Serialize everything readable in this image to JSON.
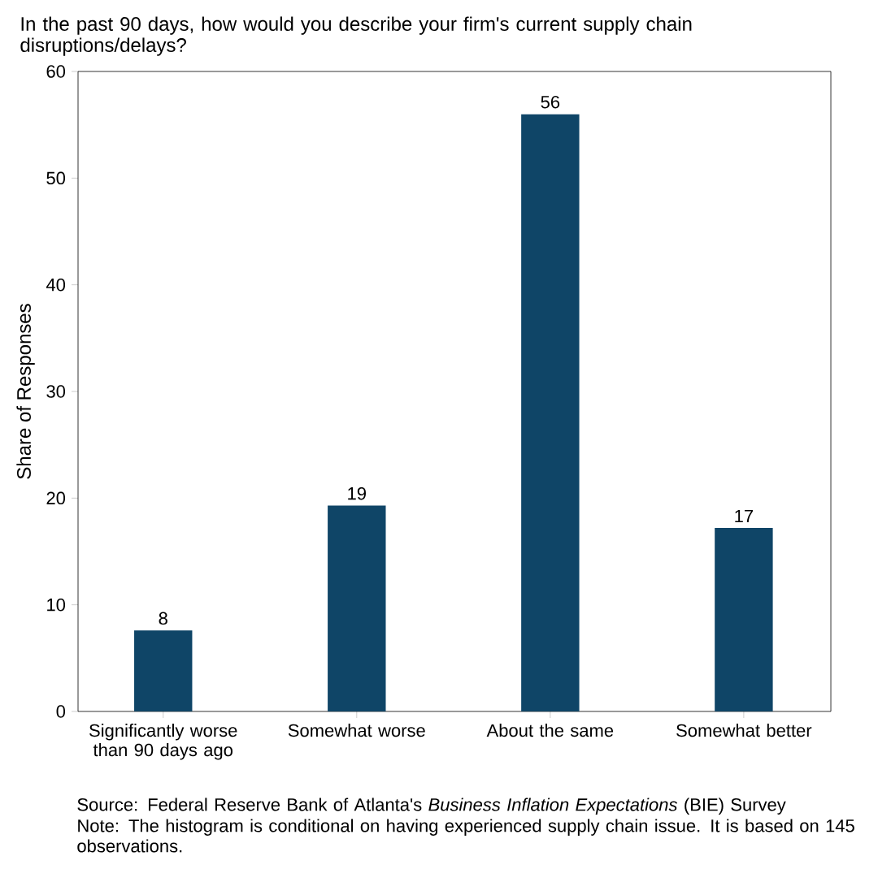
{
  "chart_data": {
    "type": "bar",
    "title": "In the past 90 days, how would you describe your firm's current supply chain disruptions/delays?",
    "ylabel": "Share of Responses",
    "categories": [
      "Significantly worse than 90 days ago",
      "Somewhat worse",
      "About the same",
      "Somewhat better"
    ],
    "values": [
      7.6,
      19.3,
      56,
      17.2
    ],
    "value_labels": [
      "8",
      "19",
      "56",
      "17"
    ],
    "color": "#0f4567",
    "ylim": [
      0,
      60
    ],
    "yticks": [
      0,
      10,
      20,
      30,
      40,
      50,
      60
    ],
    "grid": false,
    "annotations": [
      "Source: Federal Reserve Bank of Atlanta's *Business Inflation Expectations* (BIE) Survey",
      "Note: The histogram is conditional on having experienced supply chain issue. It is based on 145 observations."
    ]
  }
}
